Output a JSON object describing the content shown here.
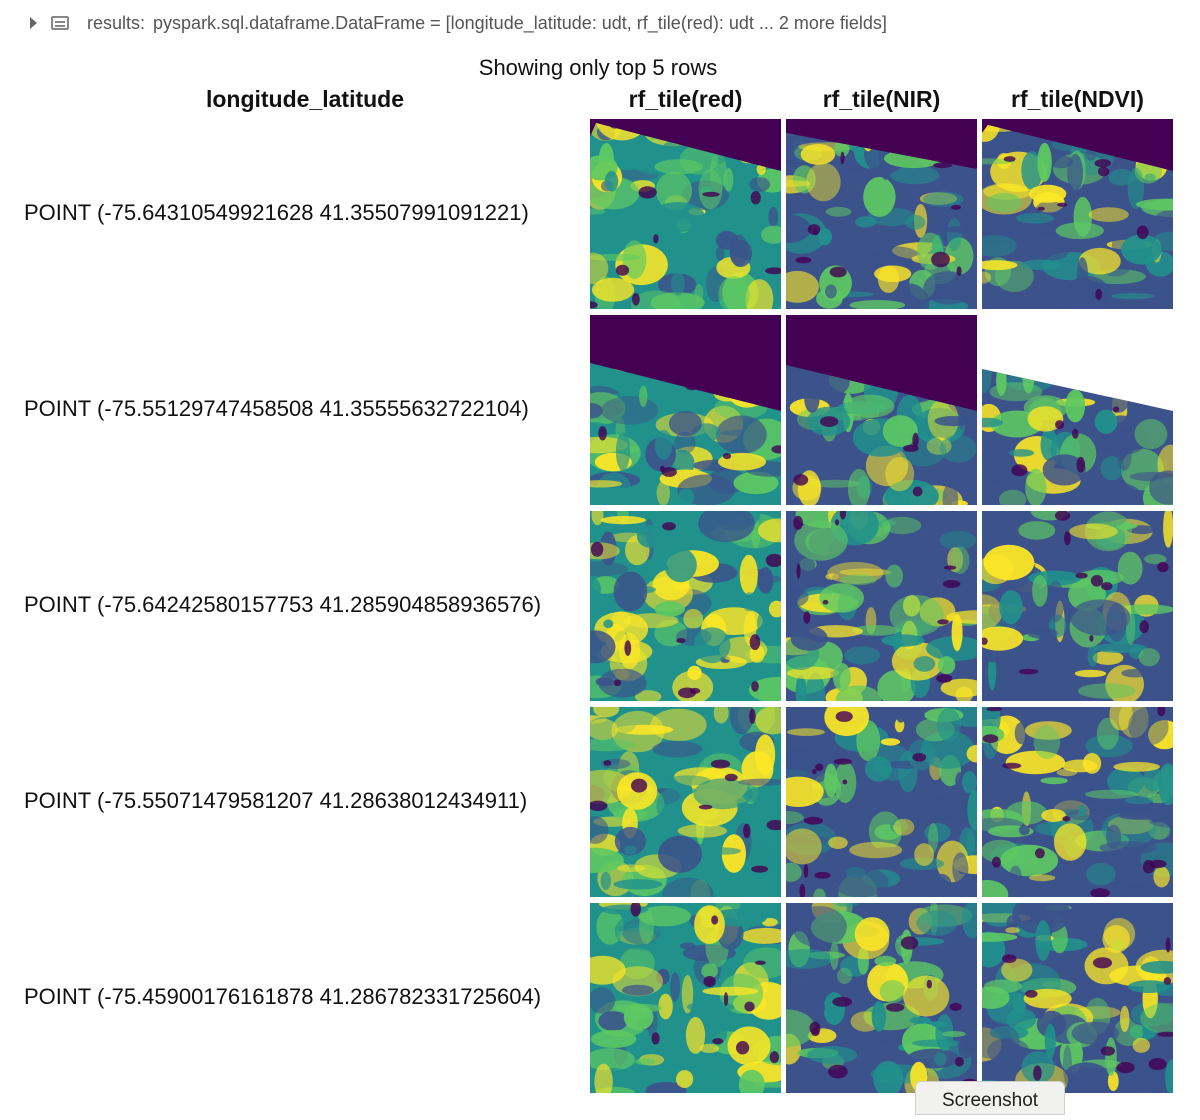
{
  "header": {
    "label": "results:",
    "type_text": "pyspark.sql.dataframe.DataFrame = [longitude_latitude: udt, rf_tile(red): udt ... 2 more fields]"
  },
  "table": {
    "caption": "Showing only top 5 rows",
    "columns": [
      "longitude_latitude",
      "rf_tile(red)",
      "rf_tile(NIR)",
      "rf_tile(NDVI)"
    ],
    "rows": [
      "POINT (-75.64310549921628 41.35507991091221)",
      "POINT (-75.55129747458508 41.35555632722104)",
      "POINT (-75.64242580157753 41.285904858936576)",
      "POINT (-75.55071479581207 41.28638012434911)",
      "POINT (-75.45900176161878 41.286782331725604)"
    ]
  },
  "palette": {
    "nodata": "#440154",
    "low": "#3b528b",
    "mid": "#21918c",
    "high": "#5ec962",
    "max": "#fde725"
  },
  "overlay": {
    "screenshot_label": "Screenshot"
  }
}
